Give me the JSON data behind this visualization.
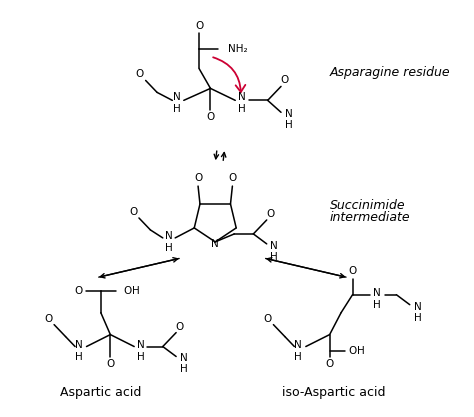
{
  "bg_color": "#ffffff",
  "text_color": "#000000",
  "label_asparagine": "Asparagine residue",
  "label_succinimide_1": "Succinimide",
  "label_succinimide_2": "intermediate",
  "label_aspartic": "Aspartic acid",
  "label_isoaspartic": "iso-Aspartic acid",
  "curved_arrow_color": "#cc0033",
  "font_size_label": 9.0,
  "font_size_atom": 7.5,
  "figsize": [
    4.74,
    4.17
  ],
  "dpi": 100
}
